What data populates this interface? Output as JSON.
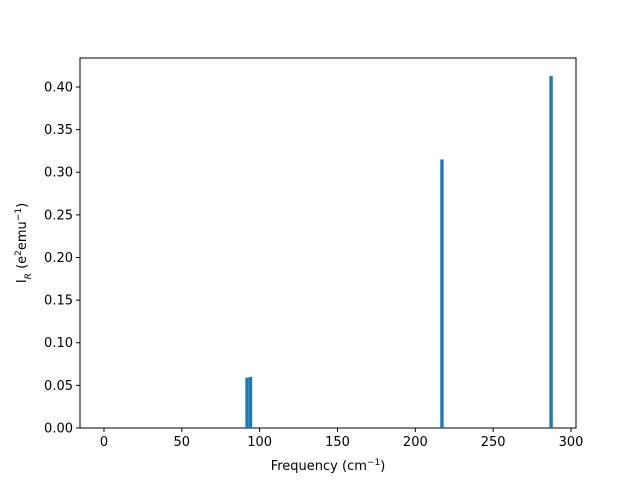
{
  "chart_data": {
    "type": "bar",
    "xlabel": [
      "Frequency (cm",
      "−1",
      ")"
    ],
    "ylabel": [
      "I",
      "R",
      " (e",
      "2",
      "emu",
      "−1",
      ")"
    ],
    "x": [
      91.9,
      94.1,
      217.1,
      287.2
    ],
    "values": [
      0.059,
      0.06,
      0.315,
      0.413
    ],
    "color": "#1f77b4",
    "xlim": [
      -15.4,
      303.2
    ],
    "xticks": [
      0,
      50,
      100,
      150,
      200,
      250,
      300
    ],
    "ylim": [
      0,
      0.434
    ],
    "yticks": [
      {
        "value": 0,
        "label": "0.00"
      },
      {
        "value": 0.05,
        "label": "0.05"
      },
      {
        "value": 0.1,
        "label": "0.10"
      },
      {
        "value": 0.15,
        "label": "0.15"
      },
      {
        "value": 0.2,
        "label": "0.20"
      },
      {
        "value": 0.25,
        "label": "0.25"
      },
      {
        "value": 0.3,
        "label": "0.30"
      },
      {
        "value": 0.35,
        "label": "0.35"
      },
      {
        "value": 0.4,
        "label": "0.40"
      }
    ]
  }
}
